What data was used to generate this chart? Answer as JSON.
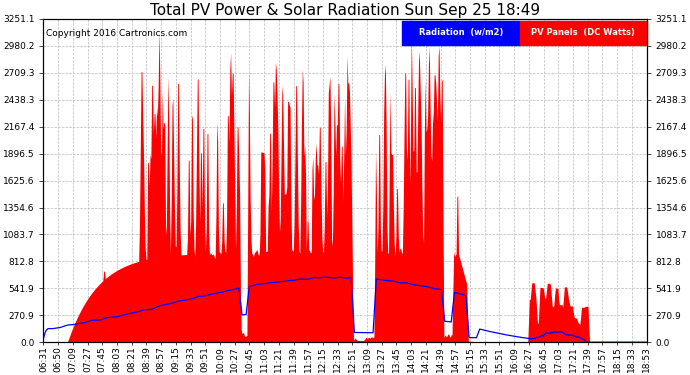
{
  "title": "Total PV Power & Solar Radiation Sun Sep 25 18:49",
  "copyright": "Copyright 2016 Cartronics.com",
  "background_color": "#ffffff",
  "plot_bg_color": "#ffffff",
  "grid_color": "#aaaaaa",
  "ylim": [
    0,
    3251.1
  ],
  "yticks": [
    0.0,
    270.9,
    541.9,
    812.8,
    1083.7,
    1354.6,
    1625.6,
    1896.5,
    2167.4,
    2438.3,
    2709.3,
    2980.2,
    3251.1
  ],
  "pv_color": "#ff0000",
  "radiation_color": "#0000ff",
  "legend_radiation_bg": "#0000ff",
  "legend_pv_bg": "#ff0000",
  "legend_radiation_text": "Radiation  (w/m2)",
  "legend_pv_text": "PV Panels  (DC Watts)",
  "title_fontsize": 11,
  "copyright_fontsize": 6.5,
  "tick_fontsize": 6.5,
  "xtick_labels": [
    "06:31",
    "06:50",
    "07:09",
    "07:27",
    "07:45",
    "08:03",
    "08:21",
    "08:39",
    "08:57",
    "09:15",
    "09:33",
    "09:51",
    "10:09",
    "10:27",
    "10:45",
    "11:03",
    "11:21",
    "11:39",
    "11:57",
    "12:15",
    "12:33",
    "12:51",
    "13:09",
    "13:27",
    "13:45",
    "14:03",
    "14:21",
    "14:39",
    "14:57",
    "15:15",
    "15:33",
    "15:51",
    "16:09",
    "16:27",
    "16:45",
    "17:03",
    "17:21",
    "17:39",
    "17:57",
    "18:15",
    "18:33",
    "18:53"
  ]
}
